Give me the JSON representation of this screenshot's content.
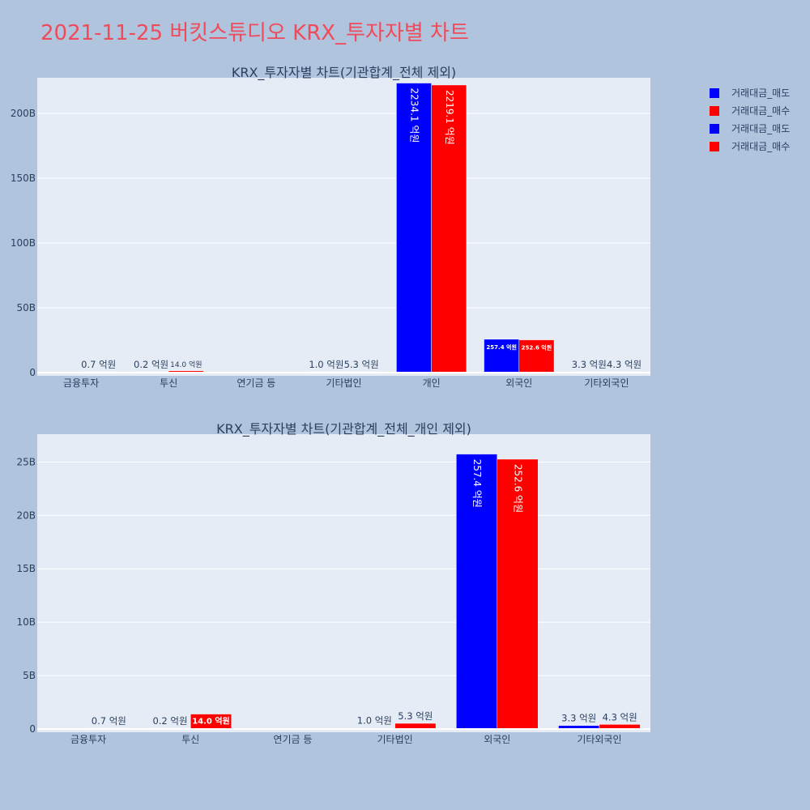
{
  "page_title": "2021-11-25 버킷스튜디오 KRX_투자자별 차트",
  "colors": {
    "sell": "#0000ff",
    "buy": "#ff0000",
    "plot_bg": "#e5ecf6",
    "paper_bg": "#b0c4de",
    "title": "#ef4b5a"
  },
  "legend": {
    "placement": "top-right",
    "items": [
      {
        "label": "거래대금_매도",
        "color": "#0000ff"
      },
      {
        "label": "거래대금_매수",
        "color": "#ff0000"
      },
      {
        "label": "거래대금_매도",
        "color": "#0000ff"
      },
      {
        "label": "거래대금_매수",
        "color": "#ff0000"
      }
    ]
  },
  "chart_data": [
    {
      "type": "bar",
      "title": "KRX_투자자별 차트(기관합계_전체 제외)",
      "categories": [
        "금융투자",
        "투신",
        "연기금 등",
        "기타법인",
        "개인",
        "외국인",
        "기타외국인"
      ],
      "ylim": [
        0,
        225
      ],
      "yticks": [
        0,
        50,
        100,
        150,
        200
      ],
      "ytick_labels": [
        "0",
        "50B",
        "100B",
        "150B",
        "200B"
      ],
      "grid": true,
      "series": [
        {
          "name": "거래대금_매도",
          "values": [
            0.0,
            0.02,
            0.0,
            0.1,
            223.41,
            25.74,
            0.33
          ],
          "labels": [
            "",
            "0.2 억원",
            "",
            "1.0 억원",
            "2234.1 억원",
            "257.4 억원",
            "3.3 억원"
          ]
        },
        {
          "name": "거래대금_매수",
          "values": [
            0.07,
            1.4,
            0.0,
            0.53,
            221.91,
            25.26,
            0.43
          ],
          "labels": [
            "0.7 억원",
            "14.0 억원",
            "",
            "5.3 억원",
            "2219.1 억원",
            "252.6 억원",
            "4.3 억원"
          ]
        }
      ]
    },
    {
      "type": "bar",
      "title": "KRX_투자자별 차트(기관합계_전체_개인 제외)",
      "categories": [
        "금융투자",
        "투신",
        "연기금 등",
        "기타법인",
        "외국인",
        "기타외국인"
      ],
      "ylim": [
        0,
        27.3
      ],
      "yticks": [
        0,
        5,
        10,
        15,
        20,
        25
      ],
      "ytick_labels": [
        "0",
        "5B",
        "10B",
        "15B",
        "20B",
        "25B"
      ],
      "grid": true,
      "series": [
        {
          "name": "거래대금_매도",
          "values": [
            0.0,
            0.02,
            0.0,
            0.1,
            25.74,
            0.33
          ],
          "labels": [
            "",
            "0.2 억원",
            "",
            "1.0 억원",
            "257.4 억원",
            "3.3 억원"
          ]
        },
        {
          "name": "거래대금_매수",
          "values": [
            0.07,
            1.4,
            0.0,
            0.53,
            25.26,
            0.43
          ],
          "labels": [
            "0.7 억원",
            "14.0 억원",
            "",
            "5.3 억원",
            "252.6 억원",
            "4.3 억원"
          ]
        }
      ]
    }
  ]
}
